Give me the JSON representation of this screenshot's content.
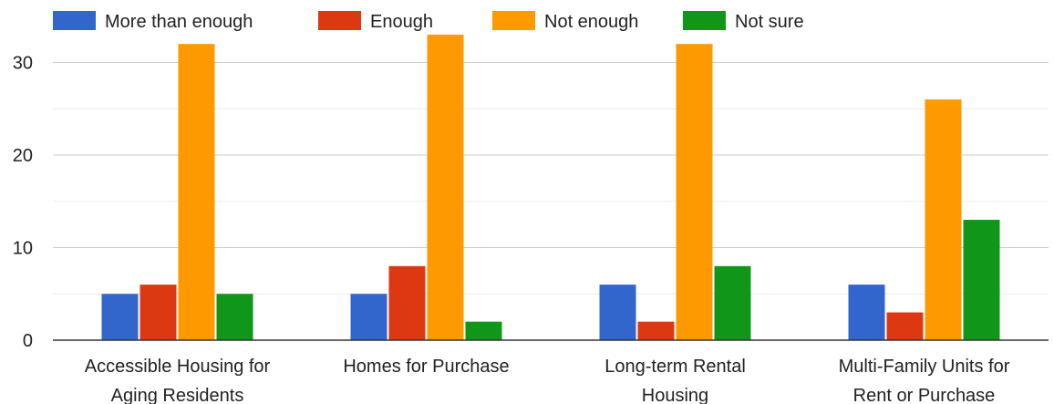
{
  "chart_data": {
    "type": "bar",
    "categories": [
      [
        "Accessible Housing for",
        "Aging Residents"
      ],
      [
        "Homes for Purchase"
      ],
      [
        "Long-term Rental",
        "Housing"
      ],
      [
        "Multi-Family Units for",
        "Rent or Purchase"
      ]
    ],
    "series": [
      {
        "name": "More than enough",
        "color": "#3366cc",
        "values": [
          5,
          5,
          6,
          6
        ]
      },
      {
        "name": "Enough",
        "color": "#dc3912",
        "values": [
          6,
          8,
          2,
          3
        ]
      },
      {
        "name": "Not enough",
        "color": "#ff9900",
        "values": [
          32,
          33,
          32,
          26
        ]
      },
      {
        "name": "Not sure",
        "color": "#109618",
        "values": [
          5,
          2,
          8,
          13
        ]
      }
    ],
    "yticks": [
      "0",
      "10",
      "20",
      "30"
    ],
    "ylim": [
      0,
      33
    ],
    "grid": true,
    "legend_position": "top-left"
  }
}
